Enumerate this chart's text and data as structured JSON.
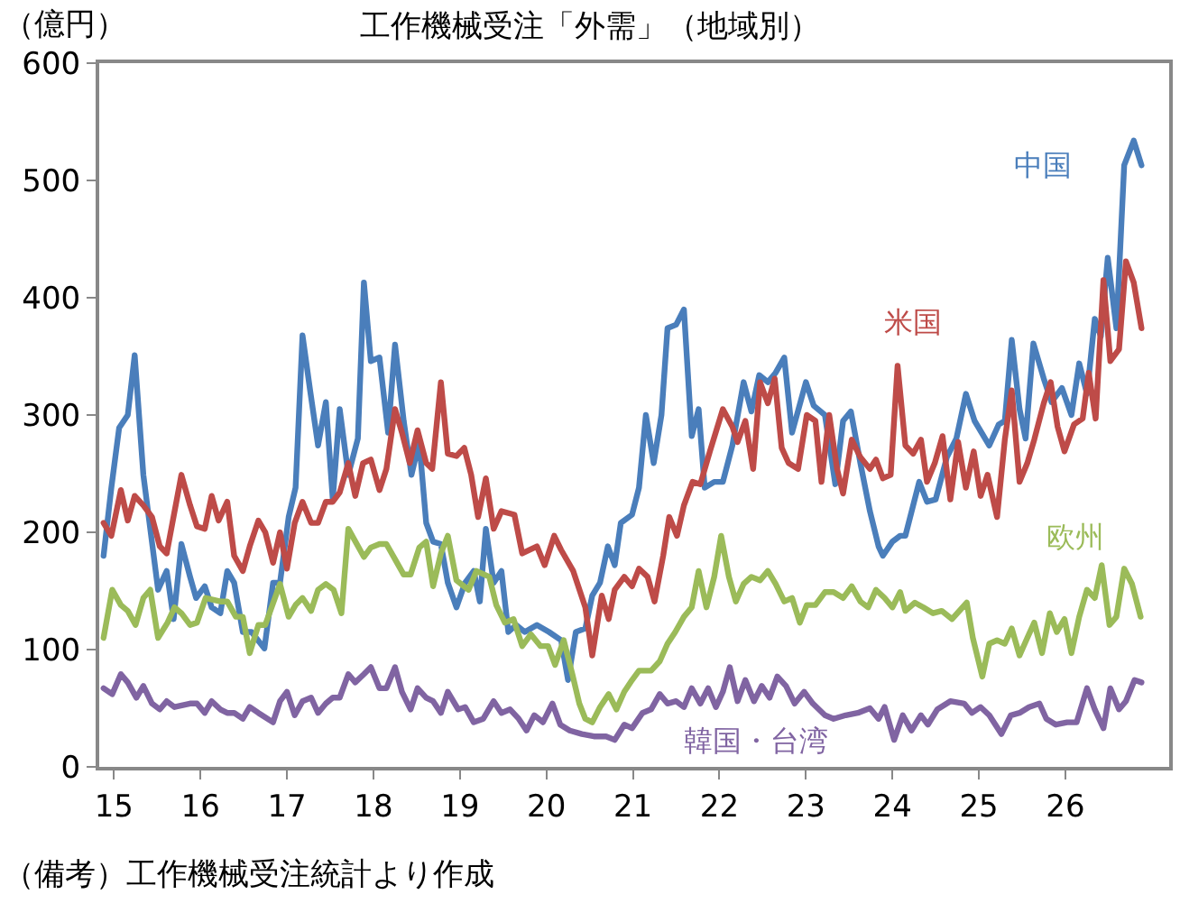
{
  "chart_data": {
    "type": "line",
    "title": "工作機械受注「外需」（地域別）",
    "ylabel": "（億円）",
    "annotations": [
      "（備考）工作機械受注統計より作成"
    ],
    "xlim": [
      14.83,
      27.2
    ],
    "xticks": [
      15,
      16,
      17,
      18,
      19,
      20,
      21,
      22,
      23,
      24,
      25,
      26
    ],
    "ylim": [
      0,
      600
    ],
    "yticks": [
      0,
      100,
      200,
      300,
      400,
      500,
      600
    ],
    "legend": false,
    "marker": "none",
    "line_style": "solid",
    "series": [
      {
        "name": "中国",
        "color": "#4a7ebb",
        "x": [
          14.88,
          14.97,
          15.06,
          15.16,
          15.24,
          15.34,
          15.42,
          15.51,
          15.61,
          15.69,
          15.78,
          15.88,
          15.95,
          16.05,
          16.13,
          16.23,
          16.31,
          16.39,
          16.49,
          16.59,
          16.74,
          16.84,
          16.92,
          17.02,
          17.1,
          17.18,
          17.27,
          17.36,
          17.45,
          17.53,
          17.61,
          17.71,
          17.82,
          17.89,
          17.97,
          18.07,
          18.17,
          18.25,
          18.35,
          18.44,
          18.53,
          18.61,
          18.69,
          18.78,
          18.86,
          18.96,
          19.06,
          19.16,
          19.23,
          19.3,
          19.39,
          19.48,
          19.56,
          19.65,
          19.75,
          19.89,
          20.03,
          20.17,
          20.25,
          20.34,
          20.45,
          20.53,
          20.62,
          20.71,
          20.79,
          20.86,
          20.99,
          21.07,
          21.15,
          21.24,
          21.33,
          21.4,
          21.5,
          21.59,
          21.68,
          21.76,
          21.83,
          21.94,
          22.04,
          22.15,
          22.28,
          22.37,
          22.46,
          22.56,
          22.65,
          22.75,
          22.84,
          23.0,
          23.09,
          23.22,
          23.34,
          23.43,
          23.52,
          23.63,
          23.74,
          23.84,
          23.89,
          24.0,
          24.09,
          24.15,
          24.31,
          24.4,
          24.5,
          24.63,
          24.74,
          24.85,
          24.95,
          25.12,
          25.23,
          25.3,
          25.38,
          25.47,
          25.54,
          25.63,
          25.75,
          25.84,
          25.96,
          26.07,
          26.16,
          26.25,
          26.34,
          26.41,
          26.49,
          26.59,
          26.68,
          26.79,
          26.88
        ],
        "values": [
          180,
          238,
          289,
          300,
          351,
          249,
          203,
          151,
          167,
          126,
          190,
          162,
          144,
          154,
          136,
          131,
          167,
          157,
          115,
          115,
          101,
          157,
          157,
          213,
          238,
          368,
          320,
          274,
          311,
          228,
          305,
          249,
          280,
          413,
          346,
          349,
          285,
          360,
          295,
          249,
          277,
          208,
          192,
          190,
          157,
          136,
          157,
          167,
          141,
          203,
          157,
          167,
          115,
          121,
          115,
          121,
          115,
          108,
          74,
          115,
          118,
          146,
          157,
          188,
          172,
          208,
          215,
          238,
          300,
          259,
          300,
          374,
          377,
          390,
          282,
          305,
          238,
          243,
          243,
          274,
          328,
          303,
          334,
          328,
          336,
          349,
          285,
          328,
          308,
          300,
          241,
          295,
          303,
          259,
          218,
          188,
          180,
          192,
          197,
          197,
          243,
          226,
          228,
          264,
          280,
          318,
          295,
          274,
          292,
          295,
          364,
          305,
          280,
          361,
          331,
          311,
          323,
          300,
          344,
          318,
          382,
          367,
          434,
          374,
          513,
          534,
          513
        ]
      },
      {
        "name": "米国",
        "color": "#be4b48",
        "x": [
          14.88,
          14.97,
          15.08,
          15.16,
          15.24,
          15.34,
          15.44,
          15.53,
          15.61,
          15.78,
          15.88,
          15.96,
          16.05,
          16.13,
          16.21,
          16.31,
          16.39,
          16.49,
          16.57,
          16.67,
          16.75,
          16.84,
          16.92,
          17.0,
          17.09,
          17.18,
          17.28,
          17.36,
          17.45,
          17.53,
          17.61,
          17.71,
          17.79,
          17.88,
          17.97,
          18.07,
          18.15,
          18.25,
          18.33,
          18.42,
          18.51,
          18.61,
          18.68,
          18.78,
          18.86,
          18.96,
          19.05,
          19.13,
          19.21,
          19.3,
          19.39,
          19.48,
          19.63,
          19.72,
          19.89,
          19.98,
          20.09,
          20.17,
          20.31,
          20.45,
          20.53,
          20.64,
          20.72,
          20.79,
          20.9,
          20.99,
          21.07,
          21.17,
          21.25,
          21.35,
          21.42,
          21.51,
          21.59,
          21.69,
          21.78,
          21.89,
          22.04,
          22.15,
          22.21,
          22.3,
          22.39,
          22.47,
          22.56,
          22.64,
          22.72,
          22.8,
          22.91,
          23.01,
          23.11,
          23.18,
          23.27,
          23.36,
          23.43,
          23.53,
          23.63,
          23.74,
          23.81,
          23.89,
          23.98,
          24.06,
          24.15,
          24.24,
          24.33,
          24.4,
          24.49,
          24.58,
          24.67,
          24.76,
          24.85,
          24.94,
          25.02,
          25.1,
          25.21,
          25.3,
          25.38,
          25.47,
          25.56,
          25.64,
          25.75,
          25.83,
          25.91,
          25.99,
          26.1,
          26.2,
          26.27,
          26.35,
          26.44,
          26.52,
          26.62,
          26.7,
          26.79,
          26.88
        ],
        "values": [
          208,
          197,
          236,
          210,
          231,
          223,
          213,
          188,
          182,
          249,
          223,
          205,
          203,
          231,
          210,
          226,
          180,
          167,
          188,
          210,
          200,
          174,
          200,
          169,
          208,
          226,
          208,
          208,
          226,
          226,
          234,
          259,
          231,
          259,
          262,
          236,
          254,
          305,
          285,
          259,
          287,
          259,
          254,
          328,
          267,
          265,
          272,
          249,
          213,
          246,
          203,
          218,
          215,
          182,
          188,
          172,
          197,
          185,
          167,
          136,
          95,
          146,
          126,
          151,
          162,
          154,
          169,
          162,
          141,
          180,
          213,
          197,
          223,
          243,
          241,
          269,
          305,
          290,
          277,
          295,
          254,
          328,
          310,
          331,
          272,
          259,
          254,
          300,
          295,
          243,
          300,
          254,
          233,
          279,
          264,
          254,
          262,
          246,
          249,
          342,
          274,
          267,
          279,
          243,
          259,
          282,
          228,
          277,
          238,
          269,
          231,
          249,
          213,
          279,
          321,
          243,
          259,
          279,
          310,
          328,
          290,
          269,
          292,
          297,
          336,
          297,
          415,
          346,
          356,
          431,
          413,
          374
        ]
      },
      {
        "name": "欧州",
        "color": "#9bbb59",
        "x": [
          14.88,
          14.98,
          15.08,
          15.16,
          15.25,
          15.34,
          15.42,
          15.51,
          15.62,
          15.7,
          15.78,
          15.88,
          15.96,
          16.06,
          16.23,
          16.31,
          16.41,
          16.49,
          16.57,
          16.67,
          16.75,
          16.92,
          17.02,
          17.1,
          17.18,
          17.28,
          17.36,
          17.45,
          17.54,
          17.63,
          17.71,
          17.89,
          17.97,
          18.07,
          18.15,
          18.25,
          18.35,
          18.43,
          18.53,
          18.61,
          18.69,
          18.78,
          18.86,
          18.96,
          19.1,
          19.19,
          19.34,
          19.42,
          19.52,
          19.62,
          19.72,
          19.82,
          19.93,
          20.02,
          20.1,
          20.2,
          20.3,
          20.38,
          20.45,
          20.53,
          20.62,
          20.72,
          20.81,
          20.9,
          20.99,
          21.07,
          21.21,
          21.31,
          21.4,
          21.49,
          21.59,
          21.68,
          21.76,
          21.85,
          21.94,
          22.02,
          22.11,
          22.19,
          22.28,
          22.37,
          22.47,
          22.56,
          22.65,
          22.75,
          22.84,
          22.93,
          23.01,
          23.11,
          23.22,
          23.32,
          23.43,
          23.53,
          23.63,
          23.72,
          23.81,
          23.91,
          24.0,
          24.09,
          24.15,
          24.26,
          24.36,
          24.47,
          24.57,
          24.69,
          24.86,
          24.93,
          25.04,
          25.12,
          25.21,
          25.3,
          25.38,
          25.47,
          25.56,
          25.64,
          25.73,
          25.82,
          25.9,
          25.99,
          26.07,
          26.16,
          26.25,
          26.34,
          26.42,
          26.51,
          26.59,
          26.68,
          26.77,
          26.87
        ],
        "values": [
          110,
          151,
          138,
          133,
          121,
          144,
          151,
          110,
          123,
          136,
          131,
          121,
          123,
          144,
          141,
          141,
          128,
          128,
          97,
          121,
          121,
          156,
          128,
          138,
          144,
          133,
          151,
          156,
          151,
          131,
          203,
          179,
          187,
          190,
          190,
          177,
          164,
          164,
          187,
          192,
          154,
          182,
          197,
          159,
          151,
          167,
          162,
          138,
          123,
          126,
          103,
          113,
          103,
          103,
          87,
          108,
          79,
          54,
          41,
          38,
          51,
          62,
          49,
          64,
          74,
          82,
          82,
          90,
          105,
          115,
          128,
          136,
          167,
          136,
          162,
          197,
          162,
          141,
          156,
          162,
          159,
          167,
          156,
          141,
          144,
          123,
          138,
          138,
          149,
          149,
          144,
          154,
          141,
          136,
          151,
          144,
          136,
          149,
          133,
          140,
          136,
          131,
          133,
          126,
          140,
          110,
          77,
          105,
          108,
          105,
          118,
          95,
          110,
          123,
          97,
          131,
          115,
          126,
          97,
          128,
          151,
          144,
          172,
          121,
          128,
          169,
          156,
          128
        ]
      },
      {
        "name": "韓国・台湾",
        "color": "#8064a2",
        "x": [
          14.88,
          14.98,
          15.08,
          15.16,
          15.26,
          15.34,
          15.44,
          15.53,
          15.61,
          15.7,
          15.88,
          15.96,
          16.05,
          16.13,
          16.23,
          16.31,
          16.39,
          16.49,
          16.57,
          16.67,
          16.84,
          16.92,
          17.0,
          17.09,
          17.18,
          17.28,
          17.36,
          17.45,
          17.53,
          17.61,
          17.71,
          17.79,
          17.89,
          17.97,
          18.07,
          18.15,
          18.25,
          18.33,
          18.43,
          18.51,
          18.61,
          18.69,
          18.78,
          18.86,
          18.98,
          19.06,
          19.16,
          19.27,
          19.39,
          19.48,
          19.58,
          19.68,
          19.77,
          19.86,
          19.96,
          20.07,
          20.16,
          20.27,
          20.41,
          20.55,
          20.69,
          20.79,
          20.9,
          20.99,
          21.11,
          21.21,
          21.31,
          21.4,
          21.5,
          21.59,
          21.68,
          21.78,
          21.87,
          21.96,
          22.04,
          22.12,
          22.21,
          22.3,
          22.4,
          22.49,
          22.58,
          22.67,
          22.77,
          22.87,
          22.98,
          23.08,
          23.22,
          23.32,
          23.46,
          23.6,
          23.74,
          23.84,
          23.91,
          24.02,
          24.12,
          24.22,
          24.33,
          24.41,
          24.52,
          24.67,
          24.83,
          24.92,
          25.02,
          25.12,
          25.26,
          25.37,
          25.47,
          25.58,
          25.7,
          25.78,
          25.89,
          26.02,
          26.13,
          26.25,
          26.34,
          26.44,
          26.52,
          26.62,
          26.7,
          26.8,
          26.88
        ],
        "values": [
          67,
          62,
          79,
          72,
          59,
          69,
          54,
          49,
          56,
          51,
          54,
          54,
          46,
          56,
          49,
          46,
          46,
          41,
          51,
          46,
          38,
          56,
          64,
          44,
          56,
          59,
          46,
          54,
          59,
          59,
          79,
          72,
          79,
          85,
          67,
          67,
          85,
          64,
          49,
          67,
          59,
          56,
          46,
          64,
          49,
          51,
          38,
          41,
          56,
          46,
          49,
          41,
          31,
          44,
          38,
          54,
          36,
          31,
          28,
          26,
          26,
          23,
          36,
          33,
          46,
          49,
          62,
          54,
          56,
          51,
          67,
          54,
          67,
          51,
          64,
          85,
          56,
          74,
          56,
          69,
          59,
          77,
          69,
          54,
          64,
          54,
          44,
          41,
          44,
          46,
          50,
          41,
          51,
          23,
          44,
          31,
          44,
          36,
          49,
          56,
          54,
          46,
          51,
          44,
          28,
          44,
          46,
          51,
          54,
          41,
          36,
          38,
          38,
          67,
          49,
          33,
          67,
          49,
          56,
          74,
          72
        ]
      }
    ]
  }
}
